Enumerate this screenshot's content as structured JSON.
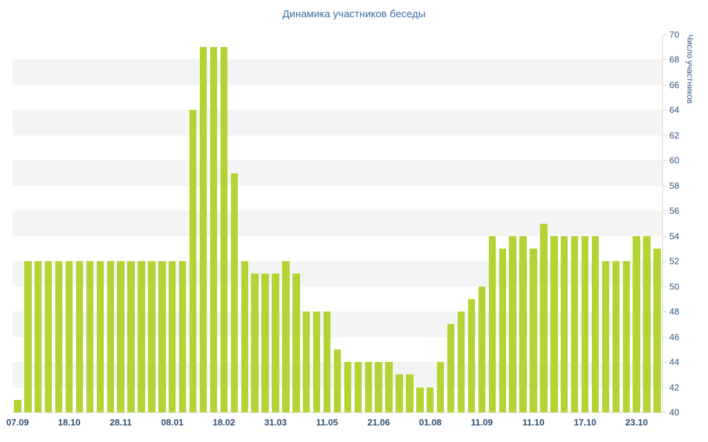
{
  "chart": {
    "title": "Динамика участников беседы",
    "y_axis_title": "Число участников"
  },
  "chart_data": {
    "type": "bar",
    "title": "Динамика участников беседы",
    "xlabel": "",
    "ylabel": "Число участников",
    "ylim": [
      40,
      70
    ],
    "y_tick_step": 2,
    "y_tick_labels": [
      "70",
      "68",
      "66",
      "64",
      "62",
      "60",
      "58",
      "56",
      "54",
      "52",
      "50",
      "48",
      "46",
      "44",
      "42",
      "40"
    ],
    "x_tick_labels": [
      "07.09",
      "18.10",
      "28.11",
      "08.01",
      "18.02",
      "31.03",
      "11.05",
      "21.06",
      "01.08",
      "11.09",
      "11.10",
      "17.10",
      "23.10"
    ],
    "x_tick_every_n_bars": 5,
    "grid": "banded-horizontal",
    "legend": "none",
    "bar_color": "#b4d435",
    "band_color": "#f4f4f4",
    "axis_line_color": "#d9d9d9",
    "axis_text_color": "#33567c",
    "title_color": "#3b70a6",
    "values": [
      41,
      52,
      52,
      52,
      52,
      52,
      52,
      52,
      52,
      52,
      52,
      52,
      52,
      52,
      52,
      52,
      52,
      64,
      69,
      69,
      69,
      59,
      52,
      51,
      51,
      51,
      52,
      51,
      48,
      48,
      48,
      45,
      44,
      44,
      44,
      44,
      44,
      43,
      43,
      42,
      42,
      44,
      47,
      48,
      49,
      50,
      54,
      53,
      54,
      54,
      53,
      55,
      54,
      54,
      54,
      54,
      54,
      52,
      52,
      52,
      54,
      54,
      53
    ]
  }
}
